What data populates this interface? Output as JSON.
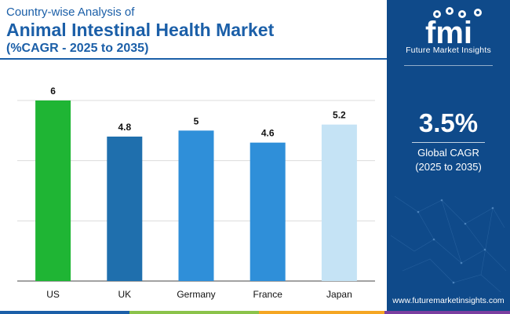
{
  "header": {
    "subtitle": "Country-wise Analysis of",
    "title": "Animal Intestinal Health Market",
    "cagr_range": "(%CAGR - 2025 to 2035)"
  },
  "chart_data": {
    "type": "bar",
    "categories": [
      "US",
      "UK",
      "Germany",
      "France",
      "Japan"
    ],
    "values": [
      6,
      4.8,
      5,
      4.6,
      5.2
    ],
    "value_labels": [
      "6",
      "4.8",
      "5",
      "4.6",
      "5.2"
    ],
    "bar_colors": [
      "#1fb534",
      "#1f6fad",
      "#2f8fd9",
      "#2f8fd9",
      "#c5e3f5"
    ],
    "ylim": [
      0,
      6
    ],
    "grid": true,
    "legend": "none",
    "xlabel": "",
    "ylabel": ""
  },
  "side_panel": {
    "logo_text": "fmi",
    "logo_tagline": "Future Market Insights",
    "stat_value": "3.5%",
    "stat_label_1": "Global CAGR",
    "stat_label_2": "(2025 to 2035)",
    "website": "www.futuremarketinsights.com"
  },
  "colors": {
    "brand_blue": "#1b5fa8",
    "panel_blue": "#0f4a8a",
    "footer_segments": [
      "#1b5fa8",
      "#8bc34a",
      "#f5a623",
      "#7b3fa0"
    ]
  }
}
